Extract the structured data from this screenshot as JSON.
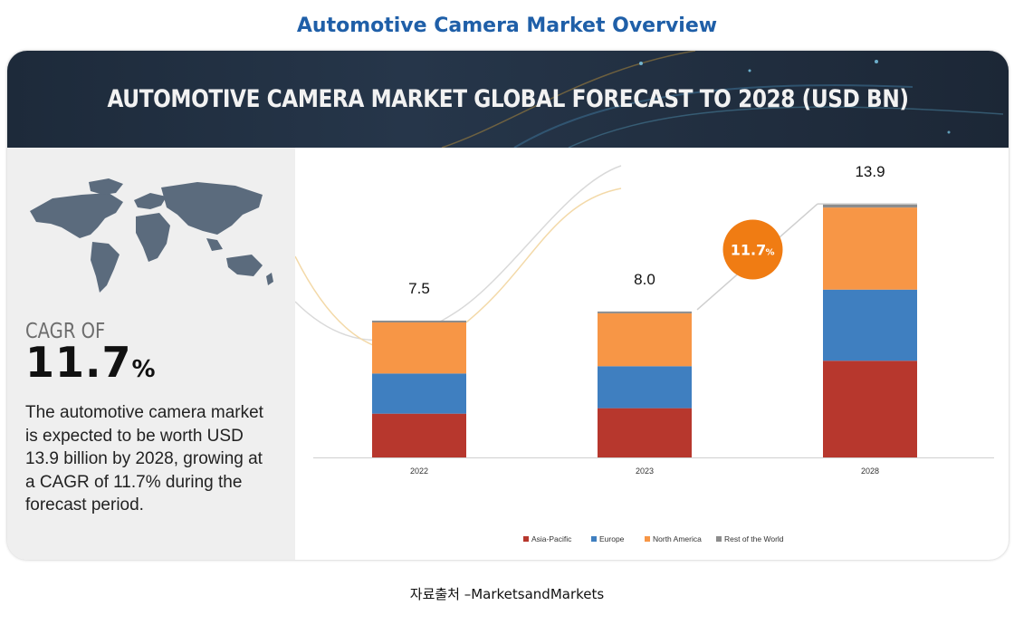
{
  "page_title": "Automotive Camera Market Overview",
  "banner_title": "AUTOMOTIVE CAMERA MARKET GLOBAL FORECAST TO 2028 (USD BN)",
  "highlight": {
    "cagr_label": "CAGR OF",
    "cagr_value": "11.7",
    "cagr_unit": "%",
    "description": "The automotive camera market is expected to be worth USD 13.9 billion by 2028, growing at a CAGR of 11.7% during the forecast period."
  },
  "source": "자료출처 –MarketsandMarkets",
  "colors": {
    "heading": "#1f5fa8",
    "banner": "#1d2a3a",
    "asia_pacific": "#b7372d",
    "europe": "#3f7fc0",
    "north_america": "#f79646",
    "rest_of_world": "#8c8c8c",
    "cagr_badge": "#f07c13"
  },
  "chart_data": {
    "type": "bar",
    "stacked": true,
    "categories": [
      "2022",
      "2023",
      "2028"
    ],
    "totals": [
      7.5,
      8.0,
      13.9
    ],
    "total_labels": [
      "7.5",
      "8.0",
      "13.9"
    ],
    "series": [
      {
        "name": "Asia-Pacific",
        "values": [
          2.4,
          2.7,
          5.3
        ]
      },
      {
        "name": "Europe",
        "values": [
          2.2,
          2.3,
          3.9
        ]
      },
      {
        "name": "North America",
        "values": [
          2.8,
          2.9,
          4.5
        ]
      },
      {
        "name": "Rest of the World",
        "values": [
          0.1,
          0.1,
          0.2
        ]
      }
    ],
    "ylim": [
      0,
      14.5
    ],
    "annotation": {
      "text": "11.7",
      "unit": "%"
    },
    "legend_position": "bottom",
    "grid": false
  }
}
